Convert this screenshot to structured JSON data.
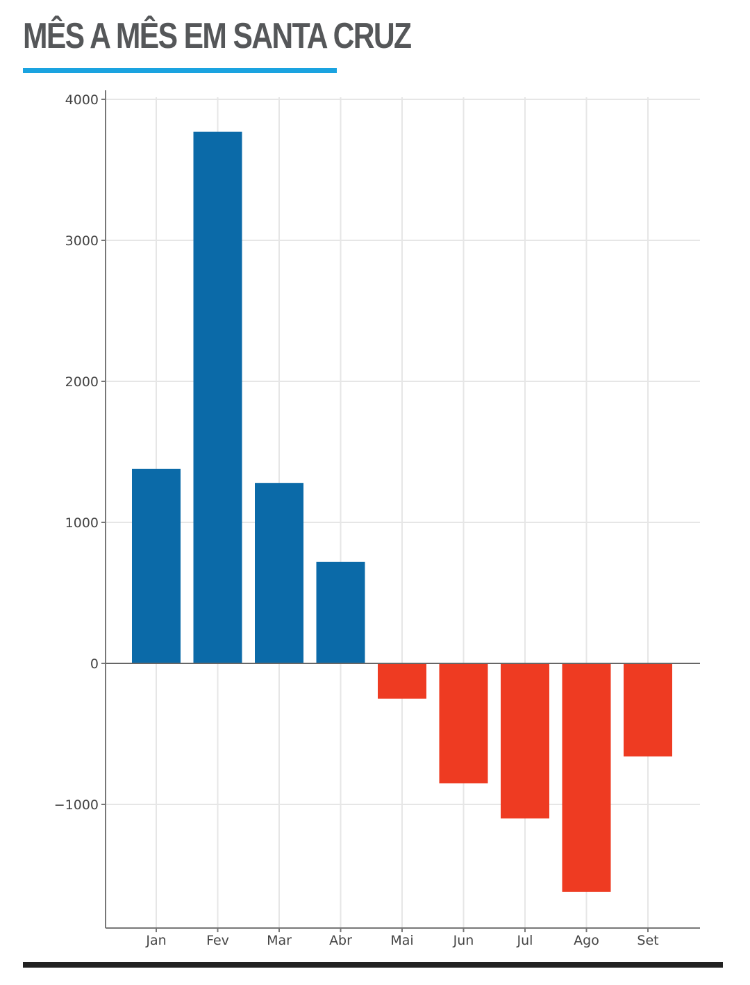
{
  "header": {
    "title": "MÊS A MÊS EM SANTA CRUZ"
  },
  "colors": {
    "title": "#555759",
    "accent": "#1aa3e0",
    "positive": "#0b6aa8",
    "negative": "#ee3b22",
    "rule": "#222222"
  },
  "chart_data": {
    "type": "bar",
    "title": "",
    "xlabel": "",
    "ylabel": "",
    "categories": [
      "Jan",
      "Fev",
      "Mar",
      "Abr",
      "Mai",
      "Jun",
      "Jul",
      "Ago",
      "Set"
    ],
    "values": [
      1380,
      3770,
      1280,
      720,
      -250,
      -850,
      -1100,
      -1620,
      -660
    ],
    "ylim": [
      -1880,
      4080
    ],
    "yticks": [
      4000,
      3000,
      2000,
      1000,
      0,
      -1000
    ],
    "ytick_labels": [
      "4000",
      "3000",
      "2000",
      "1000",
      "0",
      "−1000"
    ],
    "grid": true,
    "legend": "none"
  }
}
